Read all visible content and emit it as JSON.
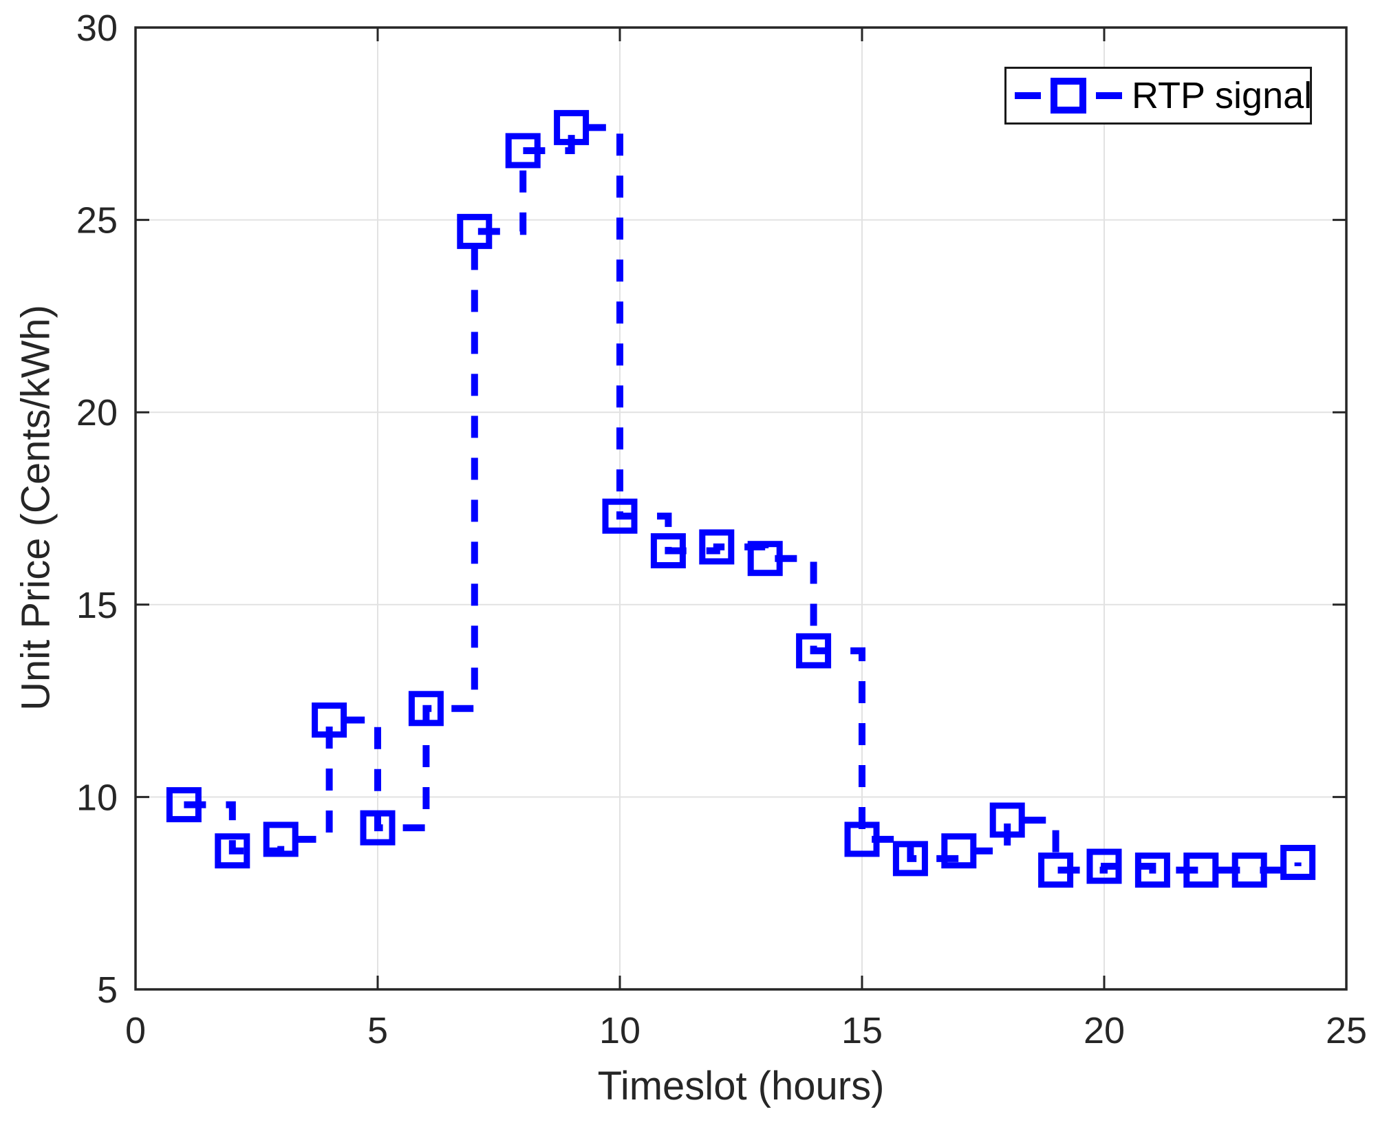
{
  "figure": {
    "background": "#ffffff",
    "axis_color": "#262626",
    "grid_color": "#e2e2e2",
    "text_color": "#262626"
  },
  "chart_data": {
    "type": "line",
    "style": "stairs, dashed line with open square markers",
    "title": "",
    "xlabel": "Timeslot (hours)",
    "ylabel": "Unit Price (Cents/kWh)",
    "xlim": [
      0,
      25
    ],
    "ylim": [
      5,
      30
    ],
    "xticks": [
      0,
      5,
      10,
      15,
      20,
      25
    ],
    "yticks": [
      5,
      10,
      15,
      20,
      25,
      30
    ],
    "grid": true,
    "line_color": "#0000ff",
    "legend": {
      "position": "top-right",
      "entries": [
        "RTP signal"
      ]
    },
    "series": [
      {
        "name": "RTP signal",
        "x": [
          1,
          2,
          3,
          4,
          5,
          6,
          7,
          8,
          9,
          10,
          11,
          12,
          13,
          14,
          15,
          16,
          17,
          18,
          19,
          20,
          21,
          22,
          23,
          24
        ],
        "values": [
          9.8,
          8.6,
          8.9,
          12.0,
          9.2,
          12.3,
          24.7,
          26.8,
          27.4,
          17.3,
          16.4,
          16.5,
          16.2,
          13.8,
          8.9,
          8.4,
          8.6,
          9.4,
          8.1,
          8.2,
          8.1,
          8.1,
          8.1,
          8.3
        ]
      }
    ]
  }
}
